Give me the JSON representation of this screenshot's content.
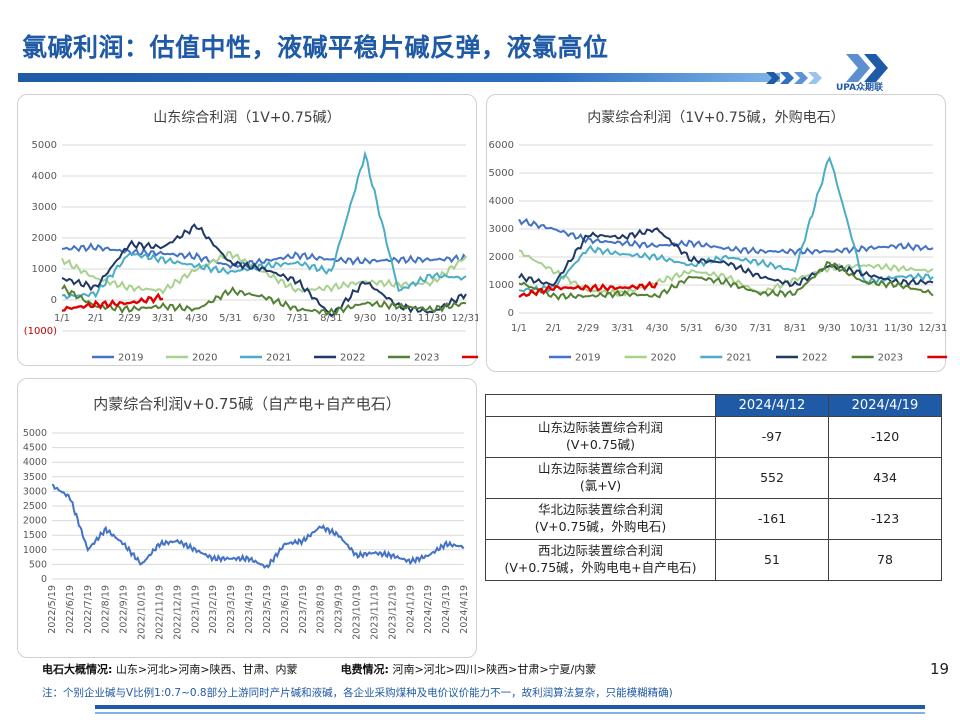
{
  "page": {
    "title": "氯碱利润：估值中性，液碱平稳片碱反弹，液氯高位",
    "logo_text": "UPA众期联",
    "page_number": "19"
  },
  "colors": {
    "brand": "#1f5aa6",
    "s2019": "#4472c4",
    "s2020": "#a9d18e",
    "s2021": "#4bacc6",
    "s2022": "#1f3864",
    "s2023": "#548235",
    "s2024": "#e00000"
  },
  "chart_data": [
    {
      "type": "line",
      "title": "山东综合利润（1V+0.75碱）",
      "x_ticks": [
        "1/1",
        "2/1",
        "2/29",
        "3/31",
        "4/30",
        "5/31",
        "6/30",
        "7/31",
        "8/31",
        "9/30",
        "10/31",
        "11/30",
        "12/31"
      ],
      "y_ticks": [
        "5000",
        "4000",
        "3000",
        "2000",
        "1000",
        "0",
        "(1000)"
      ],
      "ylim": [
        -1000,
        5000
      ],
      "grid": true,
      "legend": "bottom",
      "series": [
        {
          "name": "2019",
          "values": [
            1650,
            1700,
            1550,
            1500,
            1400,
            1100,
            1250,
            1450,
            1300,
            1250,
            1300,
            1300,
            1350
          ]
        },
        {
          "name": "2020",
          "values": [
            1300,
            700,
            400,
            300,
            1000,
            1500,
            900,
            300,
            400,
            600,
            500,
            550,
            1400
          ]
        },
        {
          "name": "2021",
          "values": [
            100,
            200,
            1500,
            1300,
            1100,
            900,
            1100,
            1200,
            900,
            4700,
            300,
            800,
            700
          ]
        },
        {
          "name": "2022",
          "values": [
            700,
            400,
            1800,
            1700,
            2400,
            1200,
            1000,
            600,
            -500,
            600,
            -200,
            -400,
            200
          ]
        },
        {
          "name": "2023",
          "values": [
            400,
            -200,
            -300,
            -200,
            -300,
            300,
            100,
            -300,
            -400,
            -100,
            -200,
            -300,
            -100
          ]
        },
        {
          "name": "2024",
          "values": [
            -300,
            -150,
            -100,
            100,
            null,
            null,
            null,
            null,
            null,
            null,
            null,
            null,
            null
          ]
        }
      ]
    },
    {
      "type": "line",
      "title": "内蒙综合利润（1V+0.75碱，外购电石）",
      "x_ticks": [
        "1/1",
        "2/1",
        "2/29",
        "3/31",
        "4/30",
        "5/31",
        "6/30",
        "7/31",
        "8/31",
        "9/30",
        "10/31",
        "11/30",
        "12/31"
      ],
      "y_ticks": [
        "6000",
        "5000",
        "4000",
        "3000",
        "2000",
        "1000",
        "0"
      ],
      "ylim": [
        0,
        6000
      ],
      "grid": true,
      "legend": "bottom",
      "series": [
        {
          "name": "2019",
          "values": [
            3300,
            3000,
            2600,
            2500,
            2400,
            2500,
            2300,
            2200,
            2200,
            2200,
            2300,
            2400,
            2300
          ]
        },
        {
          "name": "2020",
          "values": [
            2200,
            1500,
            800,
            700,
            1100,
            1500,
            1300,
            700,
            1200,
            1600,
            1700,
            1600,
            1500
          ]
        },
        {
          "name": "2021",
          "values": [
            800,
            900,
            2300,
            2100,
            2000,
            1700,
            2000,
            1800,
            1500,
            5600,
            1100,
            1300,
            1300
          ]
        },
        {
          "name": "2022",
          "values": [
            1300,
            1000,
            2800,
            2700,
            3000,
            1900,
            1800,
            1300,
            1000,
            1700,
            1400,
            1100,
            1100
          ]
        },
        {
          "name": "2023",
          "values": [
            1100,
            600,
            600,
            700,
            600,
            1300,
            1100,
            700,
            700,
            1800,
            1100,
            1000,
            700
          ]
        },
        {
          "name": "2024",
          "values": [
            600,
            900,
            900,
            900,
            1000,
            null,
            null,
            null,
            null,
            null,
            null,
            null,
            null
          ]
        }
      ]
    },
    {
      "type": "line",
      "title": "内蒙综合利润v+0.75碱（自产电+自产电石）",
      "x_ticks": [
        "2022/5/19",
        "2022/6/19",
        "2022/7/19",
        "2022/8/19",
        "2022/9/19",
        "2022/10/19",
        "2022/11/19",
        "2022/12/19",
        "2023/1/19",
        "2023/2/19",
        "2023/3/19",
        "2023/4/19",
        "2023/5/19",
        "2023/6/19",
        "2023/7/19",
        "2023/8/19",
        "2023/9/19",
        "2023/10/19",
        "2023/11/19",
        "2023/12/19",
        "2024/1/19",
        "2024/2/19",
        "2024/3/19",
        "2024/4/19"
      ],
      "y_ticks": [
        "5000",
        "4500",
        "4000",
        "3500",
        "3000",
        "2500",
        "2000",
        "1500",
        "1000",
        "500",
        "0"
      ],
      "ylim": [
        0,
        5000
      ],
      "grid": true,
      "series": [
        {
          "name": "",
          "values": [
            3200,
            2800,
            1000,
            1700,
            1200,
            500,
            1200,
            1300,
            1000,
            700,
            700,
            700,
            400,
            1200,
            1300,
            1800,
            1500,
            800,
            900,
            800,
            600,
            800,
            1200,
            1100
          ]
        }
      ]
    }
  ],
  "table": {
    "headers": [
      "",
      "2024/4/12",
      "2024/4/19"
    ],
    "rows": [
      {
        "label_line1": "山东边际装置综合利润",
        "label_line2": "(V+0.75碱)",
        "v1": "-97",
        "v2": "-120"
      },
      {
        "label_line1": "山东边际装置综合利润",
        "label_line2": "(氯+V)",
        "v1": "552",
        "v2": "434"
      },
      {
        "label_line1": "华北边际装置综合利润",
        "label_line2": "(V+0.75碱，外购电石)",
        "v1": "-161",
        "v2": "-123"
      },
      {
        "label_line1": "西北边际装置综合利润",
        "label_line2": "(V+0.75碱，外购电电+自产电石)",
        "v1": "51",
        "v2": "78"
      }
    ]
  },
  "notes": {
    "carbide_label": "电石大概情况:",
    "carbide_text": "山东>河北>河南>陕西、甘肃、内蒙",
    "power_label": "电费情况:",
    "power_text": "河南>河北>四川>陕西>甘肃>宁夏/内蒙",
    "footnote": "注：个别企业碱与V比例1:0.7~0.8部分上游同时产片碱和液碱，各企业采购煤种及电价议价能力不一，故利润算法复杂，只能模糊精确)"
  }
}
